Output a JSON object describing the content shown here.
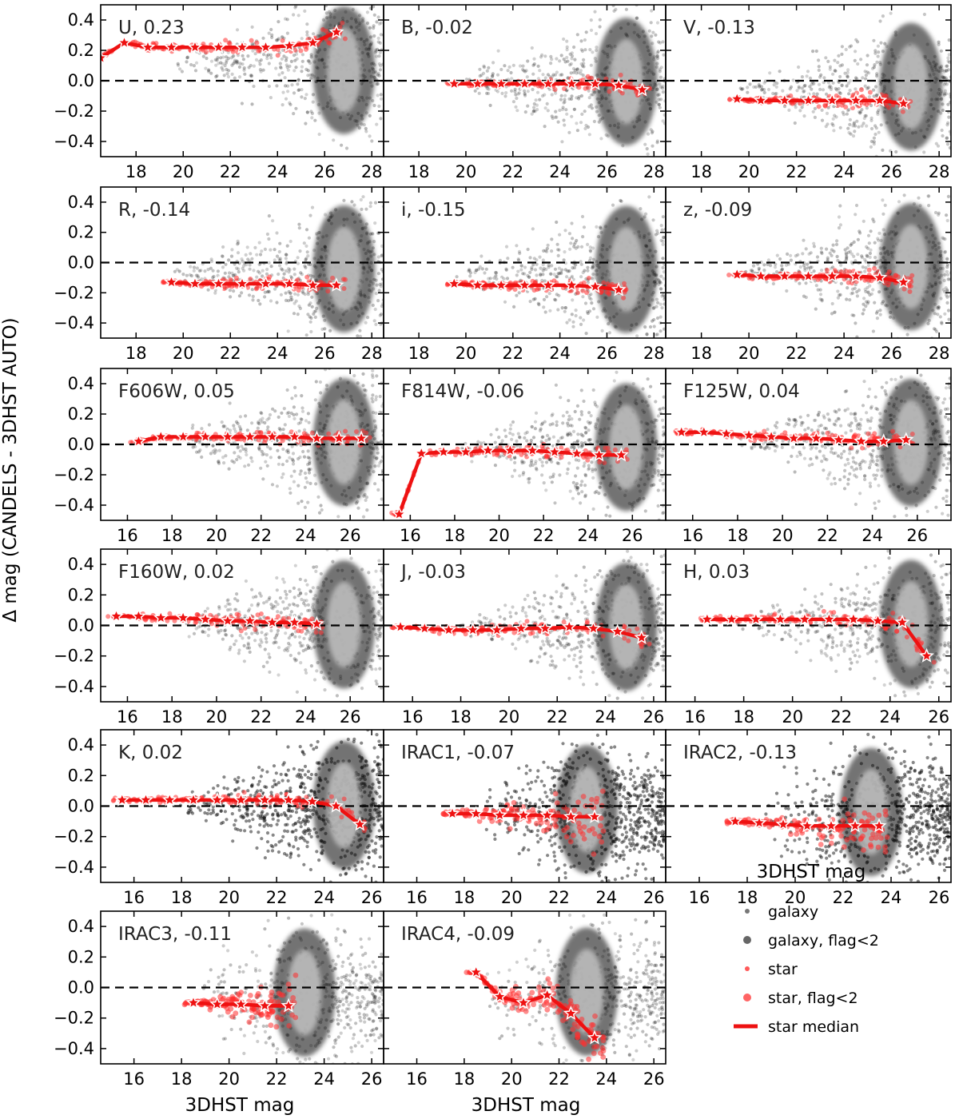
{
  "figure": {
    "ylabel": "Δ mag (CANDELS - 3DHST AUTO)",
    "xlabel": "3DHST mag"
  },
  "legend": {
    "title": "3DHST mag",
    "items": [
      {
        "label": "galaxy",
        "kind": "galaxy"
      },
      {
        "label": "galaxy, flag<2",
        "kind": "galaxy_flag"
      },
      {
        "label": "star",
        "kind": "star"
      },
      {
        "label": "star, flag<2",
        "kind": "star_flag"
      },
      {
        "label": "star median",
        "kind": "median"
      }
    ]
  },
  "colors": {
    "star": "#ff3030",
    "median": "#ee1111",
    "galaxy_dark": "#111111",
    "galaxy_light": "#bbbbbb"
  },
  "chart_data": [
    {
      "type": "scatter",
      "band": "U",
      "offset": 0.23,
      "xlim": [
        16.5,
        28.5
      ],
      "xticks": [
        18,
        20,
        22,
        24,
        26,
        28
      ],
      "ylim": [
        -0.5,
        0.5
      ],
      "yticks": [
        -0.4,
        -0.2,
        0.0,
        0.2,
        0.4
      ],
      "hline": 0.0,
      "median_x": [
        16.5,
        17.5,
        18.5,
        19.5,
        20.5,
        21.5,
        22.5,
        23.5,
        24.5,
        25.5,
        26.5
      ],
      "median_y": [
        0.15,
        0.25,
        0.22,
        0.22,
        0.22,
        0.22,
        0.22,
        0.22,
        0.23,
        0.25,
        0.32
      ]
    },
    {
      "type": "scatter",
      "band": "B",
      "offset": -0.02,
      "xlim": [
        16.5,
        28.5
      ],
      "xticks": [
        18,
        20,
        22,
        24,
        26,
        28
      ],
      "ylim": [
        -0.5,
        0.5
      ],
      "yticks": [
        -0.4,
        -0.2,
        0.0,
        0.2,
        0.4
      ],
      "hline": 0.0,
      "median_x": [
        19.5,
        20.5,
        21.5,
        22.5,
        23.5,
        24.5,
        25.5,
        26.5,
        27.5
      ],
      "median_y": [
        -0.02,
        -0.02,
        -0.02,
        -0.02,
        -0.02,
        -0.02,
        -0.02,
        -0.03,
        -0.06
      ]
    },
    {
      "type": "scatter",
      "band": "V",
      "offset": -0.13,
      "xlim": [
        16.5,
        28.5
      ],
      "xticks": [
        18,
        20,
        22,
        24,
        26,
        28
      ],
      "ylim": [
        -0.5,
        0.5
      ],
      "yticks": [
        -0.4,
        -0.2,
        0.0,
        0.2,
        0.4
      ],
      "hline": 0.0,
      "median_x": [
        19.5,
        20.5,
        21.5,
        22.5,
        23.5,
        24.5,
        25.5,
        26.5
      ],
      "median_y": [
        -0.12,
        -0.13,
        -0.13,
        -0.13,
        -0.13,
        -0.13,
        -0.13,
        -0.15
      ]
    },
    {
      "type": "scatter",
      "band": "R",
      "offset": -0.14,
      "xlim": [
        16.5,
        28.5
      ],
      "xticks": [
        18,
        20,
        22,
        24,
        26,
        28
      ],
      "ylim": [
        -0.5,
        0.5
      ],
      "yticks": [
        -0.4,
        -0.2,
        0.0,
        0.2,
        0.4
      ],
      "hline": 0.0,
      "median_x": [
        19.5,
        20.5,
        21.5,
        22.5,
        23.5,
        24.5,
        25.5,
        26.5
      ],
      "median_y": [
        -0.13,
        -0.14,
        -0.14,
        -0.14,
        -0.14,
        -0.14,
        -0.15,
        -0.15
      ]
    },
    {
      "type": "scatter",
      "band": "i",
      "offset": -0.15,
      "xlim": [
        16.5,
        28.5
      ],
      "xticks": [
        18,
        20,
        22,
        24,
        26,
        28
      ],
      "ylim": [
        -0.5,
        0.5
      ],
      "yticks": [
        -0.4,
        -0.2,
        0.0,
        0.2,
        0.4
      ],
      "hline": 0.0,
      "median_x": [
        19.5,
        20.5,
        21.5,
        22.5,
        23.5,
        24.5,
        25.5,
        26.5
      ],
      "median_y": [
        -0.14,
        -0.15,
        -0.15,
        -0.15,
        -0.15,
        -0.15,
        -0.16,
        -0.18
      ]
    },
    {
      "type": "scatter",
      "band": "z",
      "offset": -0.09,
      "xlim": [
        16.5,
        28.5
      ],
      "xticks": [
        18,
        20,
        22,
        24,
        26,
        28
      ],
      "ylim": [
        -0.5,
        0.5
      ],
      "yticks": [
        -0.4,
        -0.2,
        0.0,
        0.2,
        0.4
      ],
      "hline": 0.0,
      "median_x": [
        19.5,
        20.5,
        21.5,
        22.5,
        23.5,
        24.5,
        25.5,
        26.5
      ],
      "median_y": [
        -0.08,
        -0.09,
        -0.09,
        -0.09,
        -0.09,
        -0.09,
        -0.1,
        -0.13
      ]
    },
    {
      "type": "scatter",
      "band": "F606W",
      "offset": 0.05,
      "xlim": [
        14.8,
        27.5
      ],
      "xticks": [
        16,
        18,
        20,
        22,
        24,
        26
      ],
      "ylim": [
        -0.5,
        0.5
      ],
      "yticks": [
        -0.4,
        -0.2,
        0.0,
        0.2,
        0.4
      ],
      "hline": 0.0,
      "median_x": [
        16.5,
        17.5,
        18.5,
        19.5,
        20.5,
        21.5,
        22.5,
        23.5,
        24.5,
        25.5,
        26.5
      ],
      "median_y": [
        0.02,
        0.05,
        0.05,
        0.05,
        0.05,
        0.05,
        0.05,
        0.05,
        0.04,
        0.04,
        0.04
      ]
    },
    {
      "type": "scatter",
      "band": "F814W",
      "offset": -0.06,
      "xlim": [
        14.8,
        27.5
      ],
      "xticks": [
        16,
        18,
        20,
        22,
        24,
        26
      ],
      "ylim": [
        -0.5,
        0.5
      ],
      "yticks": [
        -0.4,
        -0.2,
        0.0,
        0.2,
        0.4
      ],
      "hline": 0.0,
      "median_x": [
        15.5,
        16.5,
        17.5,
        18.5,
        19.5,
        20.5,
        21.5,
        22.5,
        23.5,
        24.5,
        25.5
      ],
      "median_y": [
        -0.46,
        -0.06,
        -0.05,
        -0.05,
        -0.04,
        -0.04,
        -0.04,
        -0.05,
        -0.06,
        -0.07,
        -0.07
      ]
    },
    {
      "type": "scatter",
      "band": "F125W",
      "offset": 0.04,
      "xlim": [
        14.8,
        27.5
      ],
      "xticks": [
        16,
        18,
        20,
        22,
        24,
        26
      ],
      "ylim": [
        -0.5,
        0.5
      ],
      "yticks": [
        -0.4,
        -0.2,
        0.0,
        0.2,
        0.4
      ],
      "hline": 0.0,
      "median_x": [
        15.5,
        16.5,
        17.5,
        18.5,
        19.5,
        20.5,
        21.5,
        22.5,
        23.5,
        24.5,
        25.5
      ],
      "median_y": [
        0.08,
        0.08,
        0.07,
        0.06,
        0.05,
        0.04,
        0.04,
        0.03,
        0.02,
        0.02,
        0.03
      ]
    },
    {
      "type": "scatter",
      "band": "F160W",
      "offset": 0.02,
      "xlim": [
        14.8,
        27.5
      ],
      "xticks": [
        16,
        18,
        20,
        22,
        24,
        26
      ],
      "ylim": [
        -0.5,
        0.5
      ],
      "yticks": [
        -0.4,
        -0.2,
        0.0,
        0.2,
        0.4
      ],
      "hline": 0.0,
      "median_x": [
        15.5,
        16.5,
        17.5,
        18.5,
        19.5,
        20.5,
        21.5,
        22.5,
        23.5,
        24.5
      ],
      "median_y": [
        0.06,
        0.06,
        0.05,
        0.05,
        0.04,
        0.03,
        0.03,
        0.02,
        0.02,
        0.01
      ]
    },
    {
      "type": "scatter",
      "band": "J",
      "offset": -0.03,
      "xlim": [
        14.8,
        26.5
      ],
      "xticks": [
        16,
        18,
        20,
        22,
        24,
        26
      ],
      "ylim": [
        -0.5,
        0.5
      ],
      "yticks": [
        -0.4,
        -0.2,
        0.0,
        0.2,
        0.4
      ],
      "hline": 0.0,
      "median_x": [
        15.5,
        16.5,
        17.5,
        18.5,
        19.5,
        20.5,
        21.5,
        22.5,
        23.5,
        24.5,
        25.5
      ],
      "median_y": [
        -0.01,
        -0.02,
        -0.03,
        -0.03,
        -0.03,
        -0.02,
        -0.02,
        -0.01,
        -0.02,
        -0.04,
        -0.08
      ]
    },
    {
      "type": "scatter",
      "band": "H",
      "offset": 0.03,
      "xlim": [
        14.8,
        26.5
      ],
      "xticks": [
        16,
        18,
        20,
        22,
        24,
        26
      ],
      "ylim": [
        -0.5,
        0.5
      ],
      "yticks": [
        -0.4,
        -0.2,
        0.0,
        0.2,
        0.4
      ],
      "hline": 0.0,
      "median_x": [
        16.5,
        17.5,
        18.5,
        19.5,
        20.5,
        21.5,
        22.5,
        23.5,
        24.5,
        25.5
      ],
      "median_y": [
        0.04,
        0.04,
        0.04,
        0.04,
        0.04,
        0.04,
        0.04,
        0.03,
        0.02,
        -0.2
      ]
    },
    {
      "type": "scatter",
      "band": "K",
      "offset": 0.02,
      "xlim": [
        14.6,
        26.5
      ],
      "xticks": [
        16,
        18,
        20,
        22,
        24,
        26
      ],
      "ylim": [
        -0.5,
        0.5
      ],
      "yticks": [
        -0.4,
        -0.2,
        0.0,
        0.2,
        0.4
      ],
      "hline": 0.0,
      "median_x": [
        15.5,
        16.5,
        17.5,
        18.5,
        19.5,
        20.5,
        21.5,
        22.5,
        23.5,
        24.5,
        25.5
      ],
      "median_y": [
        0.04,
        0.04,
        0.04,
        0.04,
        0.04,
        0.04,
        0.04,
        0.04,
        0.03,
        0.0,
        -0.12
      ]
    },
    {
      "type": "scatter",
      "band": "IRAC1",
      "offset": -0.07,
      "xlim": [
        14.6,
        26.5
      ],
      "xticks": [
        16,
        18,
        20,
        22,
        24,
        26
      ],
      "ylim": [
        -0.5,
        0.5
      ],
      "yticks": [
        -0.4,
        -0.2,
        0.0,
        0.2,
        0.4
      ],
      "hline": 0.0,
      "median_x": [
        17.5,
        18.5,
        19.5,
        20.5,
        21.5,
        22.5,
        23.5
      ],
      "median_y": [
        -0.05,
        -0.05,
        -0.06,
        -0.06,
        -0.06,
        -0.07,
        -0.07
      ]
    },
    {
      "type": "scatter",
      "band": "IRAC2",
      "offset": -0.13,
      "xlim": [
        14.6,
        26.5
      ],
      "xticks": [
        16,
        18,
        20,
        22,
        24,
        26
      ],
      "ylim": [
        -0.5,
        0.5
      ],
      "yticks": [
        -0.4,
        -0.2,
        0.0,
        0.2,
        0.4
      ],
      "hline": 0.0,
      "median_x": [
        17.5,
        18.5,
        19.5,
        20.5,
        21.5,
        22.5,
        23.5
      ],
      "median_y": [
        -0.1,
        -0.11,
        -0.12,
        -0.13,
        -0.13,
        -0.13,
        -0.13
      ]
    },
    {
      "type": "scatter",
      "band": "IRAC3",
      "offset": -0.11,
      "xlim": [
        14.6,
        26.5
      ],
      "xticks": [
        16,
        18,
        20,
        22,
        24,
        26
      ],
      "ylim": [
        -0.5,
        0.5
      ],
      "yticks": [
        -0.4,
        -0.2,
        0.0,
        0.2,
        0.4
      ],
      "hline": 0.0,
      "median_x": [
        18.5,
        19.5,
        20.5,
        21.5,
        22.5
      ],
      "median_y": [
        -0.1,
        -0.11,
        -0.11,
        -0.12,
        -0.12
      ]
    },
    {
      "type": "scatter",
      "band": "IRAC4",
      "offset": -0.09,
      "xlim": [
        14.6,
        26.5
      ],
      "xticks": [
        16,
        18,
        20,
        22,
        24,
        26
      ],
      "ylim": [
        -0.5,
        0.5
      ],
      "yticks": [
        -0.4,
        -0.2,
        0.0,
        0.2,
        0.4
      ],
      "hline": 0.0,
      "median_x": [
        18.5,
        19.5,
        20.5,
        21.5,
        22.5,
        23.5
      ],
      "median_y": [
        0.1,
        -0.06,
        -0.1,
        -0.05,
        -0.17,
        -0.33
      ]
    }
  ]
}
